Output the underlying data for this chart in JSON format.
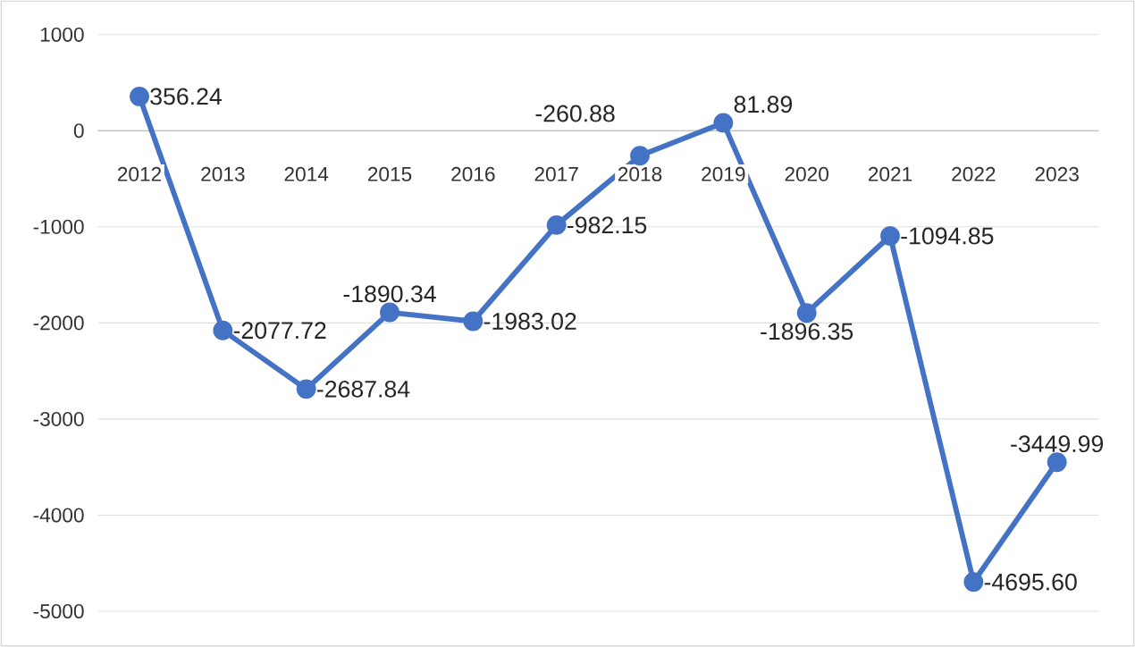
{
  "chart_data": {
    "type": "line",
    "categories": [
      "2012",
      "2013",
      "2014",
      "2015",
      "2016",
      "2017",
      "2018",
      "2019",
      "2020",
      "2021",
      "2022",
      "2023"
    ],
    "values": [
      356.24,
      -2077.72,
      -2687.84,
      -1890.34,
      -1983.02,
      -982.15,
      -260.88,
      81.89,
      -1896.35,
      -1094.85,
      -4695.6,
      -3449.99
    ],
    "value_labels": [
      "356.24",
      "-2077.72",
      "-2687.84",
      "-1890.34",
      "-1983.02",
      "-982.15",
      "-260.88",
      "81.89",
      "-1896.35",
      "-1094.85",
      "-4695.60",
      "-3449.99"
    ],
    "color": "#4472c4",
    "marker": "circle",
    "line_style": "solid",
    "grid": "y",
    "ylim": [
      -5000,
      1000
    ],
    "yticks": [
      -5000,
      -4000,
      -3000,
      -2000,
      -1000,
      0,
      1000
    ]
  }
}
